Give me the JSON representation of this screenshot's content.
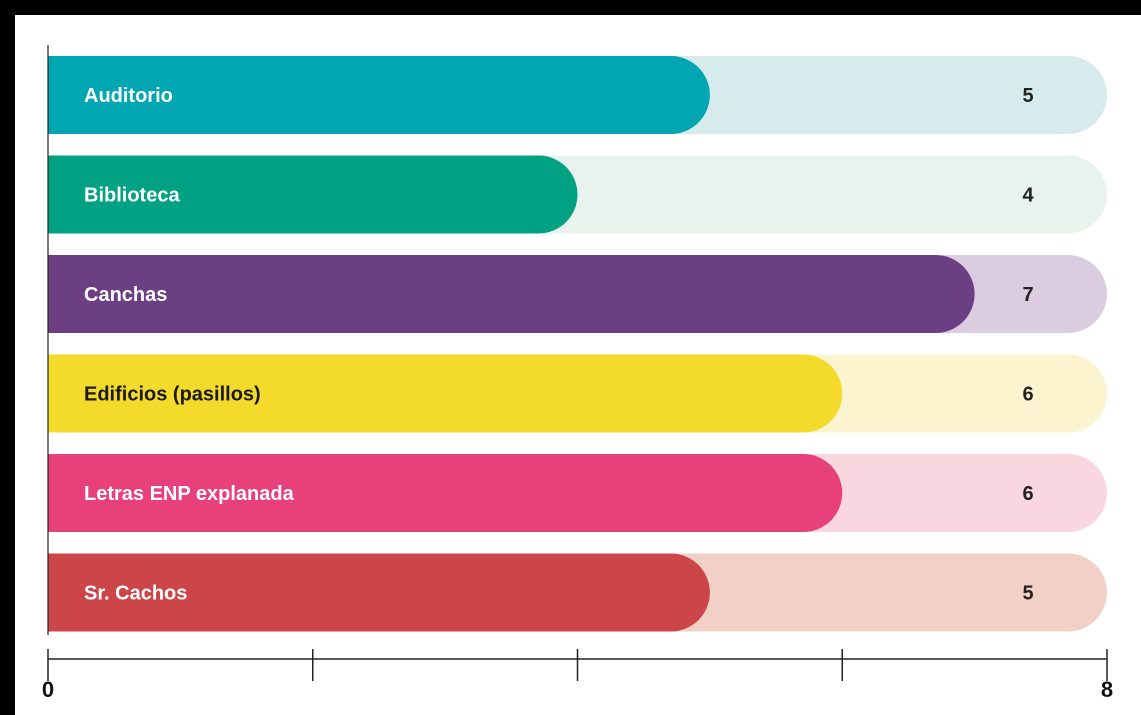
{
  "chart_data": {
    "type": "bar",
    "orientation": "horizontal",
    "categories": [
      "Auditorio",
      "Biblioteca",
      "Canchas",
      "Edificios (pasillos)",
      "Letras ENP explanada",
      "Sr. Cachos"
    ],
    "values": [
      5,
      4,
      7,
      6,
      6,
      5
    ],
    "xlim": [
      0,
      8
    ],
    "x_ticks": [
      0,
      2,
      4,
      6,
      8
    ],
    "x_tick_labels": [
      "0",
      "",
      "",
      "",
      "8"
    ],
    "grid": false,
    "legend": "none",
    "colors": [
      "#00A6B2",
      "#00A283",
      "#6C3F85",
      "#F3DA2B",
      "#E8407B",
      "#CC4549"
    ],
    "track_colors": [
      "#D6EBEC",
      "#E9F3EE",
      "#DCCCE0",
      "#FBF4CF",
      "#F9D6E0",
      "#F3D0C5"
    ],
    "label_colors": [
      "#ffffff",
      "#ffffff",
      "#ffffff",
      "#1a1a1a",
      "#ffffff",
      "#ffffff"
    ]
  }
}
